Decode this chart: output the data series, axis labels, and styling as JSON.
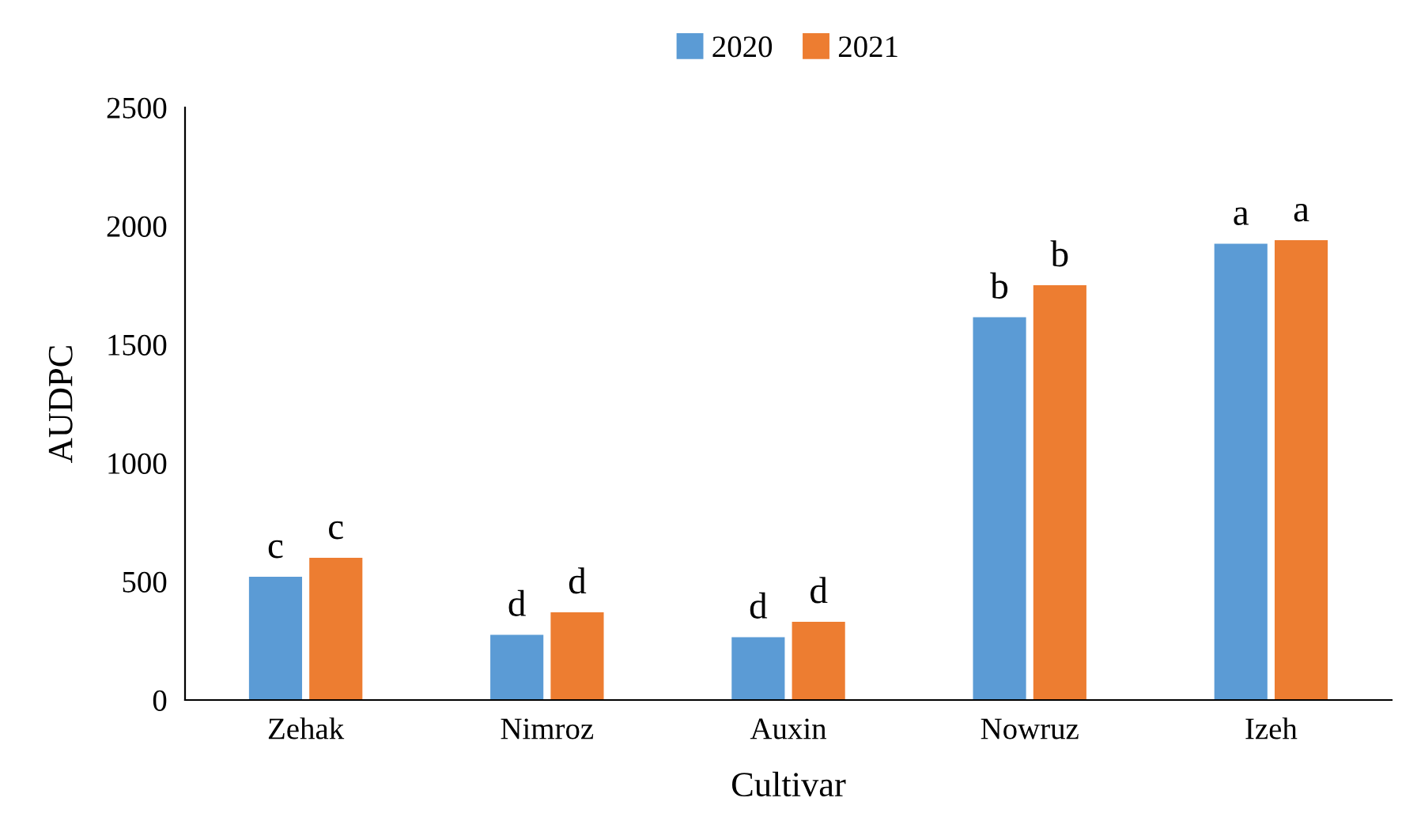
{
  "chart_data": {
    "type": "bar",
    "xlabel": "Cultivar",
    "ylabel": "AUDPC",
    "categories": [
      "Zehak",
      "Nimroz",
      "Auxin",
      "Nowruz",
      "Izeh"
    ],
    "series": [
      {
        "name": "2020",
        "color": "#5b9bd5",
        "values": [
          520,
          275,
          265,
          1615,
          1925
        ]
      },
      {
        "name": "2021",
        "color": "#ed7d31",
        "values": [
          600,
          370,
          330,
          1750,
          1940
        ]
      }
    ],
    "ylim": [
      0,
      2500
    ],
    "yticks": [
      0,
      500,
      1000,
      1500,
      2000,
      2500
    ],
    "grid": false,
    "legend": "top",
    "annotations": [
      {
        "text": "c",
        "x": "Zehak",
        "y": 520
      },
      {
        "text": "c",
        "x": "Zehak",
        "y": 600
      },
      {
        "text": "d",
        "x": "Nimroz",
        "y": 275
      },
      {
        "text": "d",
        "x": "Nimroz",
        "y": 370
      },
      {
        "text": "d",
        "x": "Auxin",
        "y": 265
      },
      {
        "text": "d",
        "x": "Auxin",
        "y": 330
      },
      {
        "text": "b",
        "x": "Nowruz",
        "y": 1615
      },
      {
        "text": "b",
        "x": "Nowruz",
        "y": 1750
      },
      {
        "text": "a",
        "x": "Izeh",
        "y": 1925
      },
      {
        "text": "a",
        "x": "Izeh",
        "y": 1940
      }
    ]
  }
}
